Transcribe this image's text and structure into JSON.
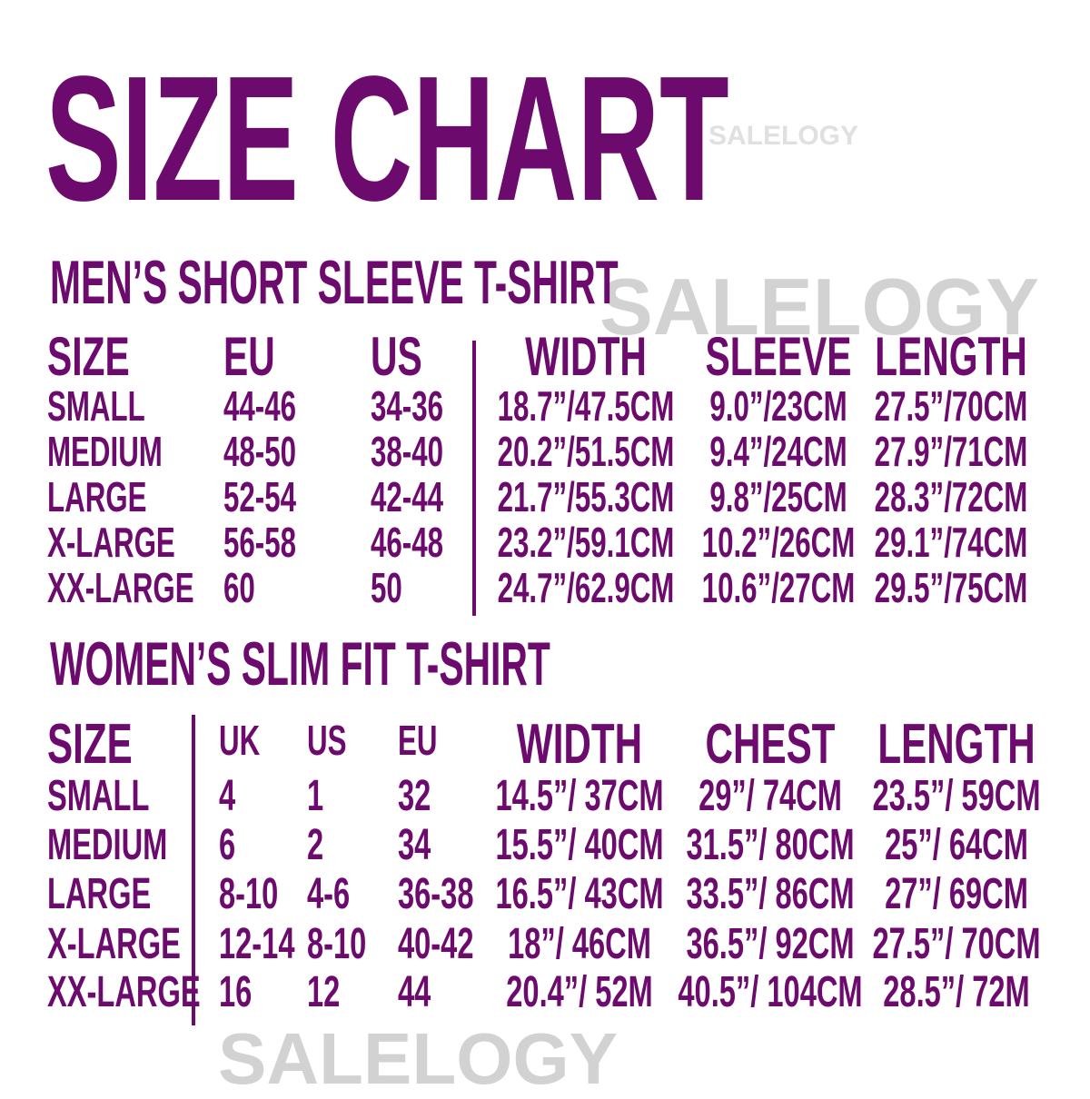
{
  "title": "SIZE CHART",
  "watermark": "SALELOGY",
  "colors": {
    "text": "#6d0a6e",
    "watermark": "#c9c9c9",
    "background": "#ffffff"
  },
  "mens": {
    "heading": "MEN’S SHORT SLEEVE T-SHIRT",
    "headers": [
      "SIZE",
      "EU",
      "US",
      "WIDTH",
      "SLEEVE",
      "LENGTH"
    ],
    "rows": [
      [
        "SMALL",
        "44-46",
        "34-36",
        "18.7”/47.5CM",
        "9.0”/23CM",
        "27.5”/70CM"
      ],
      [
        "MEDIUM",
        "48-50",
        "38-40",
        "20.2”/51.5CM",
        "9.4”/24CM",
        "27.9”/71CM"
      ],
      [
        "LARGE",
        "52-54",
        "42-44",
        "21.7”/55.3CM",
        "9.8”/25CM",
        "28.3”/72CM"
      ],
      [
        "X-LARGE",
        "56-58",
        "46-48",
        "23.2”/59.1CM",
        "10.2”/26CM",
        "29.1”/74CM"
      ],
      [
        "XX-LARGE",
        "60",
        "50",
        "24.7”/62.9CM",
        "10.6”/27CM",
        "29.5”/75CM"
      ]
    ]
  },
  "womens": {
    "heading": "WOMEN’S SLIM FIT T-SHIRT",
    "headers": [
      "SIZE",
      "UK",
      "US",
      "EU",
      "WIDTH",
      "CHEST",
      "LENGTH"
    ],
    "rows": [
      [
        "SMALL",
        "4",
        "1",
        "32",
        "14.5”/ 37CM",
        "29”/ 74CM",
        "23.5”/ 59CM"
      ],
      [
        "MEDIUM",
        "6",
        "2",
        "34",
        "15.5”/ 40CM",
        "31.5”/ 80CM",
        "25”/ 64CM"
      ],
      [
        "LARGE",
        "8-10",
        "4-6",
        "36-38",
        "16.5”/ 43CM",
        "33.5”/ 86CM",
        "27”/ 69CM"
      ],
      [
        "X-LARGE",
        "12-14",
        "8-10",
        "40-42",
        "18”/ 46CM",
        "36.5”/ 92CM",
        "27.5”/ 70CM"
      ],
      [
        "XX-LARGE",
        "16",
        "12",
        "44",
        "20.4”/ 52M",
        "40.5”/ 104CM",
        "28.5”/ 72M"
      ]
    ]
  }
}
